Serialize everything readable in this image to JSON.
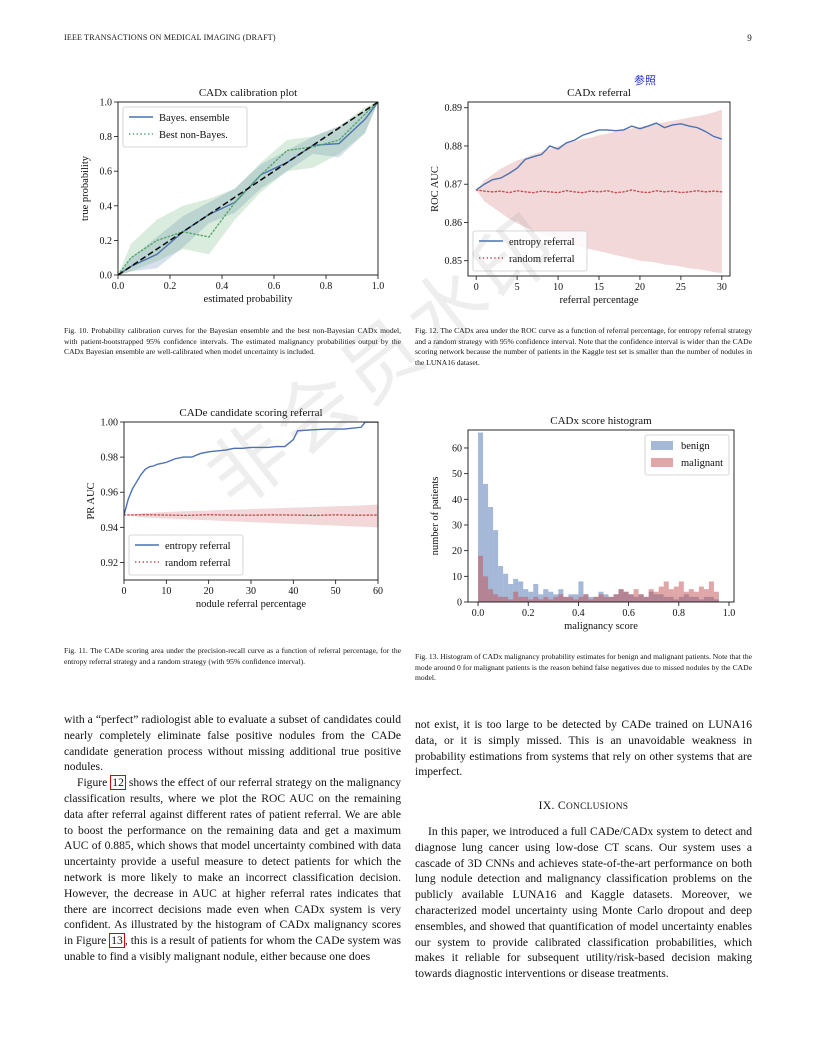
{
  "header": {
    "journal": "IEEE TRANSACTIONS ON MEDICAL IMAGING (DRAFT)",
    "page_number": "9"
  },
  "annotation": {
    "cn_mark": "参照",
    "watermark": "非会员水印"
  },
  "figures": {
    "fig10_caption": "Fig. 10.  Probability calibration curves for the Bayesian ensemble and the best non-Bayesian CADx model, with patient-bootstrapped 95% confidence intervals. The estimated malignancy probabilities output by the CADx Bayesian ensemble are well-calibrated when model uncertainty is included.",
    "fig12_caption": "Fig. 12.  The CADx area under the ROC curve as a function of referral percentage, for entropy referral strategy and a random strategy with 95% confidence interval. Note that the confidence interval is wider than the CADe scoring network because the number of patients in the Kaggle test set is smaller than the number of nodules in the LUNA16 dataset.",
    "fig11_caption": "Fig. 11.  The CADe scoring area under the precision-recall curve as a function of referral percentage, for the entropy referral strategy and a random strategy (with 95% confidence interval).",
    "fig13_caption": "Fig. 13.  Histogram of CADx malignancy probability estimates for benign and malignant patients. Note that the mode around 0 for malignant patients is the reason behind false negatives due to missed nodules by the CADe model."
  },
  "body": {
    "left_p1": "with a “perfect” radiologist able to evaluate a subset of candidates could nearly completely eliminate false positive nodules from the CADe candidate generation process without missing additional true positive nodules.",
    "left_p2_a": "Figure ",
    "left_p2_ref": "12",
    "left_p2_b": " shows the effect of our referral strategy on the malignancy classification results, where we plot the ROC AUC on the remaining data after referral against different rates of patient referral. We are able to boost the performance on the remaining data and get a maximum AUC of 0.885, which shows that model uncertainty combined with data uncertainty provide a useful measure to detect patients for which the network is more likely to make an incorrect classification decision. However, the decrease in AUC at higher referral rates indicates that there are incorrect decisions made even when CADx system is very confident. As illustrated by the histogram of CADx malignancy scores in Figure ",
    "left_p2_ref2": "13",
    "left_p2_c": ", this is a result of patients for whom the CADe system was unable to find a visibly malignant nodule, either because one does",
    "right_p1": "not exist, it is too large to be detected by CADe trained on LUNA16 data, or it is simply missed. This is an unavoidable weakness in probability estimations from systems that rely on other systems that are imperfect.",
    "section_num": "IX. ",
    "section_first": "C",
    "section_rest": "ONCLUSIONS",
    "right_p2": "In this paper, we introduced a full CADe/CADx system to detect and diagnose lung cancer using low-dose CT scans. Our system uses a cascade of 3D CNNs and achieves state-of-the-art performance on both lung nodule detection and malignancy classification problems on the publicly available LUNA16 and Kaggle datasets. Moreover, we characterized model uncertainty using Monte Carlo dropout and deep ensembles, and showed that quantification of model uncertainty enables our system to provide calibrated classification probabilities, which makes it reliable for subsequent utility/risk-based decision making towards diagnostic interventions or disease treatments."
  },
  "chart_data": [
    {
      "id": "calibration",
      "type": "line",
      "title": "CADx calibration plot",
      "xlabel": "estimated probability",
      "ylabel": "true probability",
      "xlim": [
        0,
        1
      ],
      "ylim": [
        0,
        1
      ],
      "xticks": [
        0.0,
        0.2,
        0.4,
        0.6,
        0.8,
        1.0
      ],
      "yticks": [
        0.0,
        0.2,
        0.4,
        0.6,
        0.8,
        1.0
      ],
      "tick_labels_x": [
        "0.0",
        "0.2",
        "0.4",
        "0.6",
        "0.8",
        "1.0"
      ],
      "tick_labels_y": [
        "0.0",
        "0.2",
        "0.4",
        "0.6",
        "0.8",
        "1.0"
      ],
      "legend_position": "upper-left",
      "series": [
        {
          "name": "Bayes. ensemble",
          "style": "solid",
          "color": "#4c72b0",
          "x": [
            0.0,
            0.05,
            0.15,
            0.25,
            0.35,
            0.45,
            0.55,
            0.65,
            0.75,
            0.85,
            0.95,
            1.0
          ],
          "y": [
            0.0,
            0.05,
            0.12,
            0.25,
            0.35,
            0.42,
            0.58,
            0.65,
            0.75,
            0.76,
            0.9,
            1.0
          ],
          "band_low": [
            0.0,
            0.02,
            0.04,
            0.16,
            0.3,
            0.36,
            0.5,
            0.6,
            0.7,
            0.68,
            0.82,
            1.0
          ],
          "band_high": [
            0.0,
            0.1,
            0.22,
            0.34,
            0.42,
            0.5,
            0.64,
            0.72,
            0.8,
            0.86,
            0.95,
            1.0
          ]
        },
        {
          "name": "Best non-Bayes.",
          "style": "dotted",
          "color": "#55a868",
          "x": [
            0.0,
            0.05,
            0.15,
            0.25,
            0.35,
            0.45,
            0.55,
            0.65,
            0.75,
            0.85,
            0.95,
            1.0
          ],
          "y": [
            0.0,
            0.1,
            0.2,
            0.25,
            0.22,
            0.42,
            0.58,
            0.72,
            0.74,
            0.78,
            0.93,
            1.0
          ],
          "band_low": [
            0.0,
            0.02,
            0.08,
            0.15,
            0.12,
            0.32,
            0.48,
            0.6,
            0.62,
            0.7,
            0.82,
            1.0
          ],
          "band_high": [
            0.0,
            0.18,
            0.32,
            0.4,
            0.44,
            0.5,
            0.65,
            0.78,
            0.8,
            0.86,
            0.97,
            1.0
          ]
        },
        {
          "name": "",
          "style": "dashed",
          "color": "#111111",
          "x": [
            0,
            1
          ],
          "y": [
            0,
            1
          ]
        }
      ]
    },
    {
      "id": "cadx_referral",
      "type": "line",
      "title": "CADx referral",
      "xlabel": "referral percentage",
      "ylabel": "ROC AUC",
      "xlim": [
        -1,
        31
      ],
      "ylim": [
        0.846,
        0.8915
      ],
      "xticks": [
        0,
        5,
        10,
        15,
        20,
        25,
        30
      ],
      "yticks": [
        0.85,
        0.86,
        0.87,
        0.88,
        0.89
      ],
      "tick_labels_x": [
        "0",
        "5",
        "10",
        "15",
        "20",
        "25",
        "30"
      ],
      "tick_labels_y": [
        "0.85",
        "0.86",
        "0.87",
        "0.88",
        "0.89"
      ],
      "legend_position": "lower-left",
      "series": [
        {
          "name": "entropy referral",
          "style": "solid",
          "color": "#4c72b0",
          "x": [
            0,
            1,
            2,
            3,
            4,
            5,
            6,
            7,
            8,
            9,
            10,
            11,
            12,
            13,
            14,
            15,
            16,
            17,
            18,
            19,
            20,
            21,
            22,
            23,
            24,
            25,
            26,
            27,
            28,
            29,
            30
          ],
          "y": [
            0.8685,
            0.87,
            0.8712,
            0.8716,
            0.8728,
            0.8742,
            0.8765,
            0.8772,
            0.8778,
            0.88,
            0.8792,
            0.8808,
            0.8815,
            0.8828,
            0.8835,
            0.8842,
            0.8842,
            0.884,
            0.8842,
            0.8852,
            0.8845,
            0.8852,
            0.886,
            0.8848,
            0.8855,
            0.8858,
            0.8852,
            0.8848,
            0.8838,
            0.8825,
            0.8818
          ]
        },
        {
          "name": "random referral",
          "style": "dotted",
          "color": "#c44e52",
          "x": [
            0,
            1,
            2,
            3,
            4,
            5,
            6,
            7,
            8,
            9,
            10,
            11,
            12,
            13,
            14,
            15,
            16,
            17,
            18,
            19,
            20,
            21,
            22,
            23,
            24,
            25,
            26,
            27,
            28,
            29,
            30
          ],
          "y": [
            0.8685,
            0.8682,
            0.868,
            0.8682,
            0.8678,
            0.8683,
            0.868,
            0.8678,
            0.8682,
            0.868,
            0.8678,
            0.8683,
            0.868,
            0.8678,
            0.8682,
            0.868,
            0.8683,
            0.8678,
            0.868,
            0.8685,
            0.868,
            0.8678,
            0.8683,
            0.868,
            0.8682,
            0.8678,
            0.868,
            0.8683,
            0.868,
            0.8682,
            0.868
          ],
          "band_low": [
            0.8685,
            0.8655,
            0.864,
            0.8625,
            0.861,
            0.8598,
            0.8588,
            0.8578,
            0.857,
            0.8562,
            0.8555,
            0.8548,
            0.854,
            0.8535,
            0.853,
            0.8525,
            0.852,
            0.8515,
            0.851,
            0.8505,
            0.85,
            0.8498,
            0.8495,
            0.849,
            0.8488,
            0.8485,
            0.848,
            0.8478,
            0.8475,
            0.847,
            0.8468
          ],
          "band_high": [
            0.8685,
            0.871,
            0.8725,
            0.874,
            0.8752,
            0.8762,
            0.877,
            0.8778,
            0.8785,
            0.8792,
            0.88,
            0.8806,
            0.8812,
            0.8818,
            0.8822,
            0.8828,
            0.8832,
            0.8838,
            0.8842,
            0.8846,
            0.885,
            0.8854,
            0.8858,
            0.8862,
            0.8866,
            0.887,
            0.8874,
            0.8878,
            0.8882,
            0.8888,
            0.8895
          ]
        }
      ]
    },
    {
      "id": "cade_referral",
      "type": "line",
      "title": "CADe candidate scoring referral",
      "xlabel": "nodule referral percentage",
      "ylabel": "PR AUC",
      "xlim": [
        0,
        60
      ],
      "ylim": [
        0.91,
        1.0
      ],
      "xticks": [
        0,
        10,
        20,
        30,
        40,
        50,
        60
      ],
      "yticks": [
        0.92,
        0.94,
        0.96,
        0.98,
        1.0
      ],
      "tick_labels_x": [
        "0",
        "10",
        "20",
        "30",
        "40",
        "50",
        "60"
      ],
      "tick_labels_y": [
        "0.92",
        "0.94",
        "0.96",
        "0.98",
        "1.00"
      ],
      "legend_position": "lower-left",
      "series": [
        {
          "name": "entropy referral",
          "style": "solid",
          "color": "#4c72b0",
          "x": [
            0,
            1,
            2,
            3,
            4,
            5,
            6,
            7,
            8,
            10,
            12,
            14,
            16,
            18,
            20,
            22,
            24,
            26,
            28,
            30,
            32,
            34,
            36,
            38,
            40,
            41,
            44,
            48,
            52,
            56,
            57,
            58,
            60
          ],
          "y": [
            0.947,
            0.956,
            0.962,
            0.966,
            0.97,
            0.973,
            0.9745,
            0.975,
            0.976,
            0.977,
            0.979,
            0.98,
            0.98,
            0.982,
            0.983,
            0.9835,
            0.984,
            0.985,
            0.985,
            0.9855,
            0.9855,
            0.9855,
            0.986,
            0.986,
            0.99,
            0.995,
            0.9955,
            0.996,
            0.996,
            0.997,
            1.0,
            1.0,
            1.0
          ]
        },
        {
          "name": "random referral",
          "style": "dotted",
          "color": "#c44e52",
          "x": [
            0,
            5,
            10,
            15,
            20,
            25,
            30,
            35,
            40,
            45,
            50,
            55,
            60
          ],
          "y": [
            0.947,
            0.9472,
            0.947,
            0.9468,
            0.9472,
            0.947,
            0.9469,
            0.9471,
            0.947,
            0.9468,
            0.9471,
            0.9469,
            0.947
          ],
          "band_low": [
            0.947,
            0.9455,
            0.945,
            0.9445,
            0.944,
            0.9435,
            0.943,
            0.9425,
            0.942,
            0.9415,
            0.941,
            0.9405,
            0.94
          ],
          "band_high": [
            0.947,
            0.9482,
            0.9488,
            0.9492,
            0.9496,
            0.95,
            0.9504,
            0.9508,
            0.9512,
            0.9516,
            0.952,
            0.9524,
            0.953
          ]
        }
      ]
    },
    {
      "id": "cadx_histogram",
      "type": "bar",
      "title": "CADx score histogram",
      "xlabel": "malignancy score",
      "ylabel": "number of patients",
      "xlim": [
        -0.04,
        1.02
      ],
      "ylim": [
        0,
        67
      ],
      "xticks": [
        0.0,
        0.2,
        0.4,
        0.6,
        0.8,
        1.0
      ],
      "yticks": [
        0,
        10,
        20,
        30,
        40,
        50,
        60
      ],
      "tick_labels_x": [
        "0.0",
        "0.2",
        "0.4",
        "0.6",
        "0.8",
        "1.0"
      ],
      "tick_labels_y": [
        "0",
        "10",
        "20",
        "30",
        "40",
        "50",
        "60"
      ],
      "legend_position": "upper-right",
      "bin_width": 0.02,
      "series": [
        {
          "name": "benign",
          "color": "#4c72b0",
          "bin_start": [
            0.0,
            0.02,
            0.04,
            0.06,
            0.08,
            0.1,
            0.12,
            0.14,
            0.16,
            0.18,
            0.2,
            0.22,
            0.24,
            0.26,
            0.28,
            0.3,
            0.32,
            0.34,
            0.36,
            0.38,
            0.4,
            0.42,
            0.44,
            0.46,
            0.48,
            0.5,
            0.52,
            0.54,
            0.56,
            0.58,
            0.6,
            0.62,
            0.64,
            0.66,
            0.68,
            0.7,
            0.72,
            0.74,
            0.76,
            0.78,
            0.8,
            0.82,
            0.84,
            0.86,
            0.88,
            0.9,
            0.92,
            0.94
          ],
          "counts": [
            66,
            46,
            37,
            28,
            14,
            11,
            7,
            9,
            8,
            5,
            4,
            7,
            3,
            5,
            4,
            3,
            5,
            2,
            3,
            3,
            8,
            3,
            2,
            2,
            4,
            3,
            2,
            3,
            5,
            4,
            3,
            2,
            3,
            2,
            4,
            3,
            3,
            2,
            2,
            1,
            2,
            3,
            2,
            2,
            1,
            2,
            2,
            1
          ]
        },
        {
          "name": "malignant",
          "color": "#c44e52",
          "bin_start": [
            0.0,
            0.02,
            0.04,
            0.06,
            0.08,
            0.1,
            0.12,
            0.14,
            0.16,
            0.18,
            0.2,
            0.22,
            0.24,
            0.26,
            0.28,
            0.3,
            0.32,
            0.34,
            0.36,
            0.38,
            0.4,
            0.42,
            0.44,
            0.46,
            0.48,
            0.5,
            0.52,
            0.54,
            0.56,
            0.58,
            0.6,
            0.62,
            0.64,
            0.66,
            0.68,
            0.7,
            0.72,
            0.74,
            0.76,
            0.78,
            0.8,
            0.82,
            0.84,
            0.86,
            0.88,
            0.9,
            0.92,
            0.94
          ],
          "counts": [
            18,
            10,
            5,
            3,
            2,
            2,
            1,
            4,
            2,
            2,
            1,
            2,
            1,
            2,
            1,
            2,
            3,
            2,
            2,
            1,
            2,
            3,
            1,
            2,
            3,
            2,
            2,
            3,
            5,
            4,
            3,
            5,
            3,
            2,
            5,
            4,
            6,
            8,
            5,
            6,
            8,
            4,
            5,
            4,
            6,
            5,
            8,
            4
          ]
        }
      ]
    }
  ]
}
